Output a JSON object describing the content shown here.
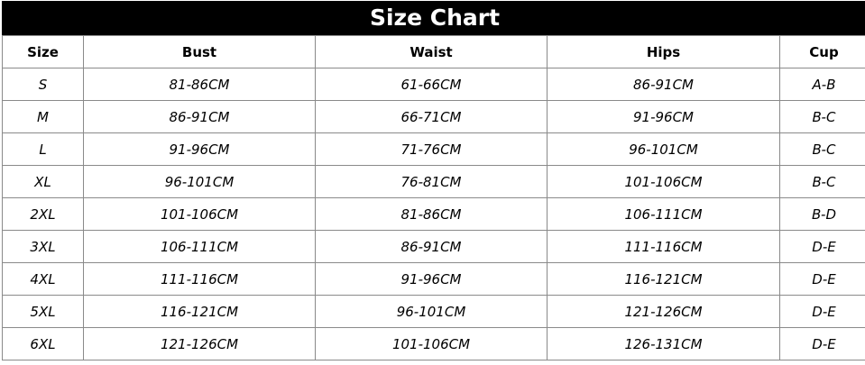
{
  "title": "Size Chart",
  "headers": [
    "Size",
    "Bust",
    "Waist",
    "Hips",
    "Cup"
  ],
  "rows": [
    [
      "S",
      "81-86CM",
      "61-66CM",
      "86-91CM",
      "A-B"
    ],
    [
      "M",
      "86-91CM",
      "66-71CM",
      "91-96CM",
      "B-C"
    ],
    [
      "L",
      "91-96CM",
      "71-76CM",
      "96-101CM",
      "B-C"
    ],
    [
      "XL",
      "96-101CM",
      "76-81CM",
      "101-106CM",
      "B-C"
    ],
    [
      "2XL",
      "101-106CM",
      "81-86CM",
      "106-111CM",
      "B-D"
    ],
    [
      "3XL",
      "106-111CM",
      "86-91CM",
      "111-116CM",
      "D-E"
    ],
    [
      "4XL",
      "111-116CM",
      "91-96CM",
      "116-121CM",
      "D-E"
    ],
    [
      "5XL",
      "116-121CM",
      "96-101CM",
      "121-126CM",
      "D-E"
    ],
    [
      "6XL",
      "121-126CM",
      "101-106CM",
      "126-131CM",
      "D-E"
    ]
  ]
}
